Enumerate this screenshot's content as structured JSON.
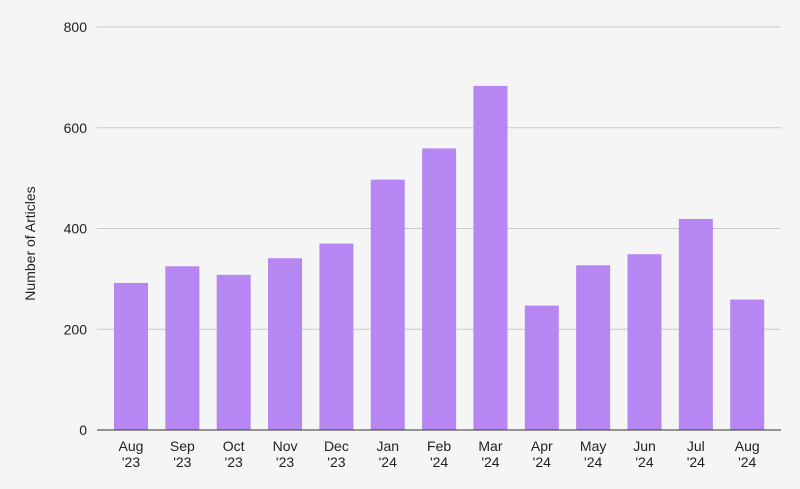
{
  "chart_data": {
    "type": "bar",
    "title": "",
    "xlabel": "",
    "ylabel": "Number of Articles",
    "ylim": [
      0,
      800
    ],
    "yticks": [
      0,
      200,
      400,
      600,
      800
    ],
    "grid": true,
    "bar_color": "#b687f2",
    "gridline_color": "#cccccc",
    "categories": [
      [
        "Aug",
        "'23"
      ],
      [
        "Sep",
        "'23"
      ],
      [
        "Oct",
        "'23"
      ],
      [
        "Nov",
        "'23"
      ],
      [
        "Dec",
        "'23"
      ],
      [
        "Jan",
        "'24"
      ],
      [
        "Feb",
        "'24"
      ],
      [
        "Mar",
        "'24"
      ],
      [
        "Apr",
        "'24"
      ],
      [
        "May",
        "'24"
      ],
      [
        "Jun",
        "'24"
      ],
      [
        "Jul",
        "'24"
      ],
      [
        "Aug",
        "'24"
      ]
    ],
    "values": [
      292,
      325,
      308,
      341,
      370,
      497,
      559,
      683,
      247,
      327,
      349,
      419,
      259
    ]
  }
}
